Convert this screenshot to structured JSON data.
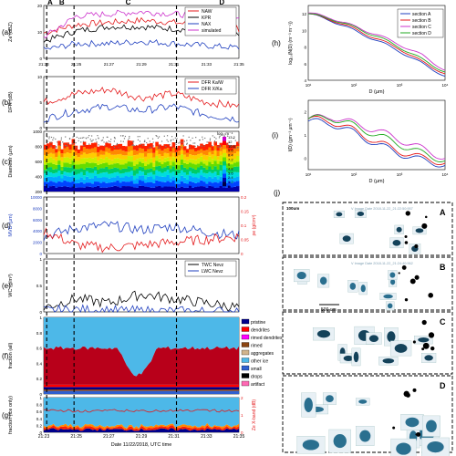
{
  "figure": {
    "panel_labels": [
      "(a)",
      "(b)",
      "(c)",
      "(d)",
      "(e)",
      "(f)",
      "(g)",
      "(h)",
      "(i)",
      "(j)"
    ],
    "section_labels": [
      "A",
      "B",
      "C",
      "D"
    ],
    "x_axis_ticks": [
      "21:23",
      "21:25",
      "21:27",
      "21:29",
      "21:31",
      "21:33",
      "21:35"
    ],
    "x_axis_label": "Date 11/22/2018, UTC time"
  },
  "chart_data": [
    {
      "panel": "(a)",
      "type": "line",
      "ylabel": "Ze (dBZ)",
      "ylim": [
        0,
        25
      ],
      "y_ticks": [
        "0",
        "10",
        "20"
      ],
      "x": [
        "21:23",
        "21:25",
        "21:27",
        "21:29",
        "21:31",
        "21:33",
        "21:35"
      ],
      "series": [
        {
          "name": "NAW",
          "color": "#e41a1c",
          "values": [
            12,
            16,
            17,
            18,
            17,
            15,
            14
          ]
        },
        {
          "name": "KPR",
          "color": "#000000",
          "values": [
            8,
            13,
            15,
            15,
            14,
            13,
            12
          ]
        },
        {
          "name": "NAX",
          "color": "#1f3fbf",
          "values": [
            4,
            7,
            7,
            8,
            7,
            6,
            5
          ]
        },
        {
          "name": "simulated",
          "color": "#cc33cc",
          "values": [
            10,
            20,
            21,
            22,
            21,
            20,
            19
          ]
        }
      ]
    },
    {
      "panel": "(b)",
      "type": "line",
      "ylabel": "DFR (dB)",
      "ylim": [
        0,
        12
      ],
      "y_ticks": [
        "0",
        "5",
        "10"
      ],
      "x": [
        "21:23",
        "21:25",
        "21:27",
        "21:29",
        "21:31",
        "21:33",
        "21:35"
      ],
      "series": [
        {
          "name": "DFR Ka/W",
          "color": "#e41a1c",
          "values": [
            6,
            8,
            9,
            7,
            8,
            6,
            5
          ]
        },
        {
          "name": "DFR X/Ka",
          "color": "#1f3fbf",
          "values": [
            2,
            4,
            5,
            4,
            5,
            3,
            2
          ]
        }
      ]
    },
    {
      "panel": "(c)",
      "type": "heatmap",
      "ylabel": "Diameter (µm)",
      "ylim": [
        200,
        1000
      ],
      "y_ticks": [
        "200",
        "400",
        "600",
        "800",
        "1000"
      ],
      "colorbar_label": "log₁₀m⁻⁴",
      "colorbar_ticks": [
        "13.2",
        "12",
        "10.8",
        "9.6",
        "8.4",
        "7.2",
        "6",
        "4.8",
        "3.6",
        "2.4",
        "1.2",
        "0"
      ]
    },
    {
      "panel": "(d)",
      "type": "line",
      "ylabel_left": "MVD (µm)",
      "ylabel_right": "ρe (g/cm³)",
      "y_ticks_left": [
        "0",
        "2000",
        "4000",
        "6000",
        "8000",
        "10000"
      ],
      "y_ticks_right": [
        "0",
        "0.05",
        "0.1",
        "0.15",
        "0.2"
      ],
      "x": [
        "21:23",
        "21:25",
        "21:27",
        "21:29",
        "21:31",
        "21:33",
        "21:35"
      ],
      "series": [
        {
          "name": "MVD",
          "color": "#1f3fbf",
          "values": [
            3000,
            4500,
            5000,
            4200,
            4800,
            3800,
            3200
          ]
        },
        {
          "name": "ρe",
          "color": "#e41a1c",
          "values": [
            0.08,
            0.03,
            0.02,
            0.03,
            0.04,
            0.05,
            0.06
          ]
        }
      ]
    },
    {
      "panel": "(e)",
      "type": "line",
      "ylabel": "WC (g/m³)",
      "ylim": [
        0,
        1.2
      ],
      "y_ticks": [
        "0",
        "0.5",
        "1"
      ],
      "x": [
        "21:23",
        "21:25",
        "21:27",
        "21:29",
        "21:31",
        "21:33",
        "21:35"
      ],
      "series": [
        {
          "name": "TWC Nevz",
          "color": "#000000",
          "values": [
            0.1,
            0.3,
            0.2,
            0.4,
            0.3,
            0.2,
            0.1
          ]
        },
        {
          "name": "LWC Nevz",
          "color": "#1f3fbf",
          "values": [
            0.02,
            0.05,
            0.03,
            0.02,
            0.01,
            0.01,
            0.01
          ]
        }
      ]
    },
    {
      "panel": "(f)",
      "type": "area",
      "ylabel": "fraction (all)",
      "ylim": [
        0,
        1
      ],
      "y_ticks": [
        "0",
        "0.2",
        "0.4",
        "0.6",
        "0.8",
        "1"
      ],
      "legend": [
        {
          "name": "pristine",
          "color": "#00008b"
        },
        {
          "name": "dendrites",
          "color": "#ff0000"
        },
        {
          "name": "rimed dendrites",
          "color": "#ff00ff"
        },
        {
          "name": "rimed",
          "color": "#8b4513"
        },
        {
          "name": "aggregates",
          "color": "#d2b48c"
        },
        {
          "name": "other ice",
          "color": "#4db8e8"
        },
        {
          "name": "small",
          "color": "#2f5fcf"
        },
        {
          "name": "drops",
          "color": "#000000"
        },
        {
          "name": "artifact",
          "color": "#ff69b4"
        }
      ]
    },
    {
      "panel": "(g)",
      "type": "area",
      "ylabel": "fraction (ice only)",
      "ylabel_right": "Ze X-band (dB)",
      "ylim": [
        0,
        1
      ],
      "y_ticks": [
        "0",
        "0.2",
        "0.4",
        "0.6",
        "0.8",
        "1"
      ],
      "y_ticks_right": [
        "0",
        "1",
        "2"
      ]
    },
    {
      "panel": "(h)",
      "type": "line",
      "ylabel": "log₁₀(N(D) (m⁻³ m⁻¹))",
      "xlabel": "D (µm)",
      "x_scale": "log",
      "xlim": [
        10,
        10000
      ],
      "ylim": [
        4,
        13
      ],
      "y_ticks": [
        "4",
        "6",
        "8",
        "10",
        "12"
      ],
      "x_ticks": [
        "10¹",
        "10²",
        "10³",
        "10⁴"
      ],
      "x": [
        10,
        30,
        100,
        300,
        1000,
        3000,
        10000
      ],
      "series": [
        {
          "name": "section A",
          "color": "#1f3fbf",
          "values": [
            12,
            11.2,
            10,
            8.8,
            7.5,
            6,
            4.5
          ]
        },
        {
          "name": "section B",
          "color": "#e41a1c",
          "values": [
            12,
            11.3,
            10.2,
            9,
            7.8,
            6.2,
            4.8
          ]
        },
        {
          "name": "section C",
          "color": "#cc33cc",
          "values": [
            12.1,
            11.5,
            10.5,
            9.5,
            8.3,
            7,
            5.2
          ]
        },
        {
          "name": "section D",
          "color": "#22aa22",
          "values": [
            12,
            11.4,
            10.4,
            9.3,
            8,
            6.5,
            5
          ]
        }
      ]
    },
    {
      "panel": "(i)",
      "type": "line",
      "ylabel": "I(D) (gm⁻³ µm⁻¹)",
      "xlabel": "D (µm)",
      "x_scale": "log",
      "xlim": [
        10,
        10000
      ],
      "ylim": [
        -0.5,
        2.5
      ],
      "y_ticks": [
        "0",
        "1",
        "2"
      ],
      "x_ticks": [
        "10¹",
        "10²",
        "10³",
        "10⁴"
      ],
      "x": [
        10,
        30,
        100,
        300,
        1000,
        3000,
        10000
      ],
      "series": [
        {
          "name": "section A",
          "color": "#1f3fbf",
          "values": [
            1.6,
            1.5,
            1.1,
            0.6,
            0.2,
            -0.1,
            -0.3
          ]
        },
        {
          "name": "section B",
          "color": "#e41a1c",
          "values": [
            1.7,
            1.6,
            1.2,
            0.7,
            0.3,
            0.0,
            -0.2
          ]
        },
        {
          "name": "section C",
          "color": "#cc33cc",
          "values": [
            1.7,
            1.8,
            1.5,
            1.2,
            0.8,
            0.4,
            0.0
          ]
        },
        {
          "name": "section D",
          "color": "#22aa22",
          "values": [
            1.7,
            1.75,
            1.4,
            1.0,
            0.6,
            0.2,
            -0.1
          ]
        }
      ]
    }
  ],
  "images_panel": {
    "label": "(j)",
    "scale_bars": [
      "100um",
      "500 um"
    ],
    "captions": [
      "V Image Date   2018-11-22_21:22:50:957",
      "V Image Date   2018-11-22_21:24:40:962"
    ],
    "sections": [
      "A",
      "B",
      "C",
      "D"
    ]
  }
}
